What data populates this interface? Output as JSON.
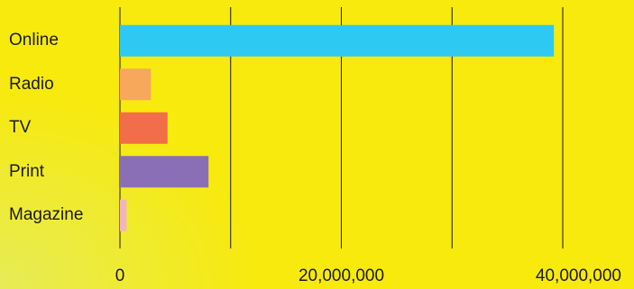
{
  "chart_data": {
    "type": "bar",
    "orientation": "horizontal",
    "categories": [
      "Online",
      "Radio",
      "TV",
      "Print",
      "Magazine"
    ],
    "values": [
      39200000,
      2800000,
      4300000,
      8000000,
      600000
    ],
    "colors": [
      "#2ec9f2",
      "#f7a85a",
      "#f26d4a",
      "#8a6fb7",
      "#f2b4c2"
    ],
    "xlim": [
      0,
      40000000
    ],
    "xticks": [
      0,
      10000000,
      20000000,
      30000000,
      40000000
    ],
    "xtick_labels": [
      "0",
      "",
      "20,000,000",
      "",
      "40,000,000"
    ],
    "grid": true,
    "title": "",
    "xlabel": "",
    "ylabel": ""
  },
  "colors": {
    "background": "#f7ea0c",
    "gridline": "#1b1b1b",
    "text": "#1b1b1b"
  }
}
